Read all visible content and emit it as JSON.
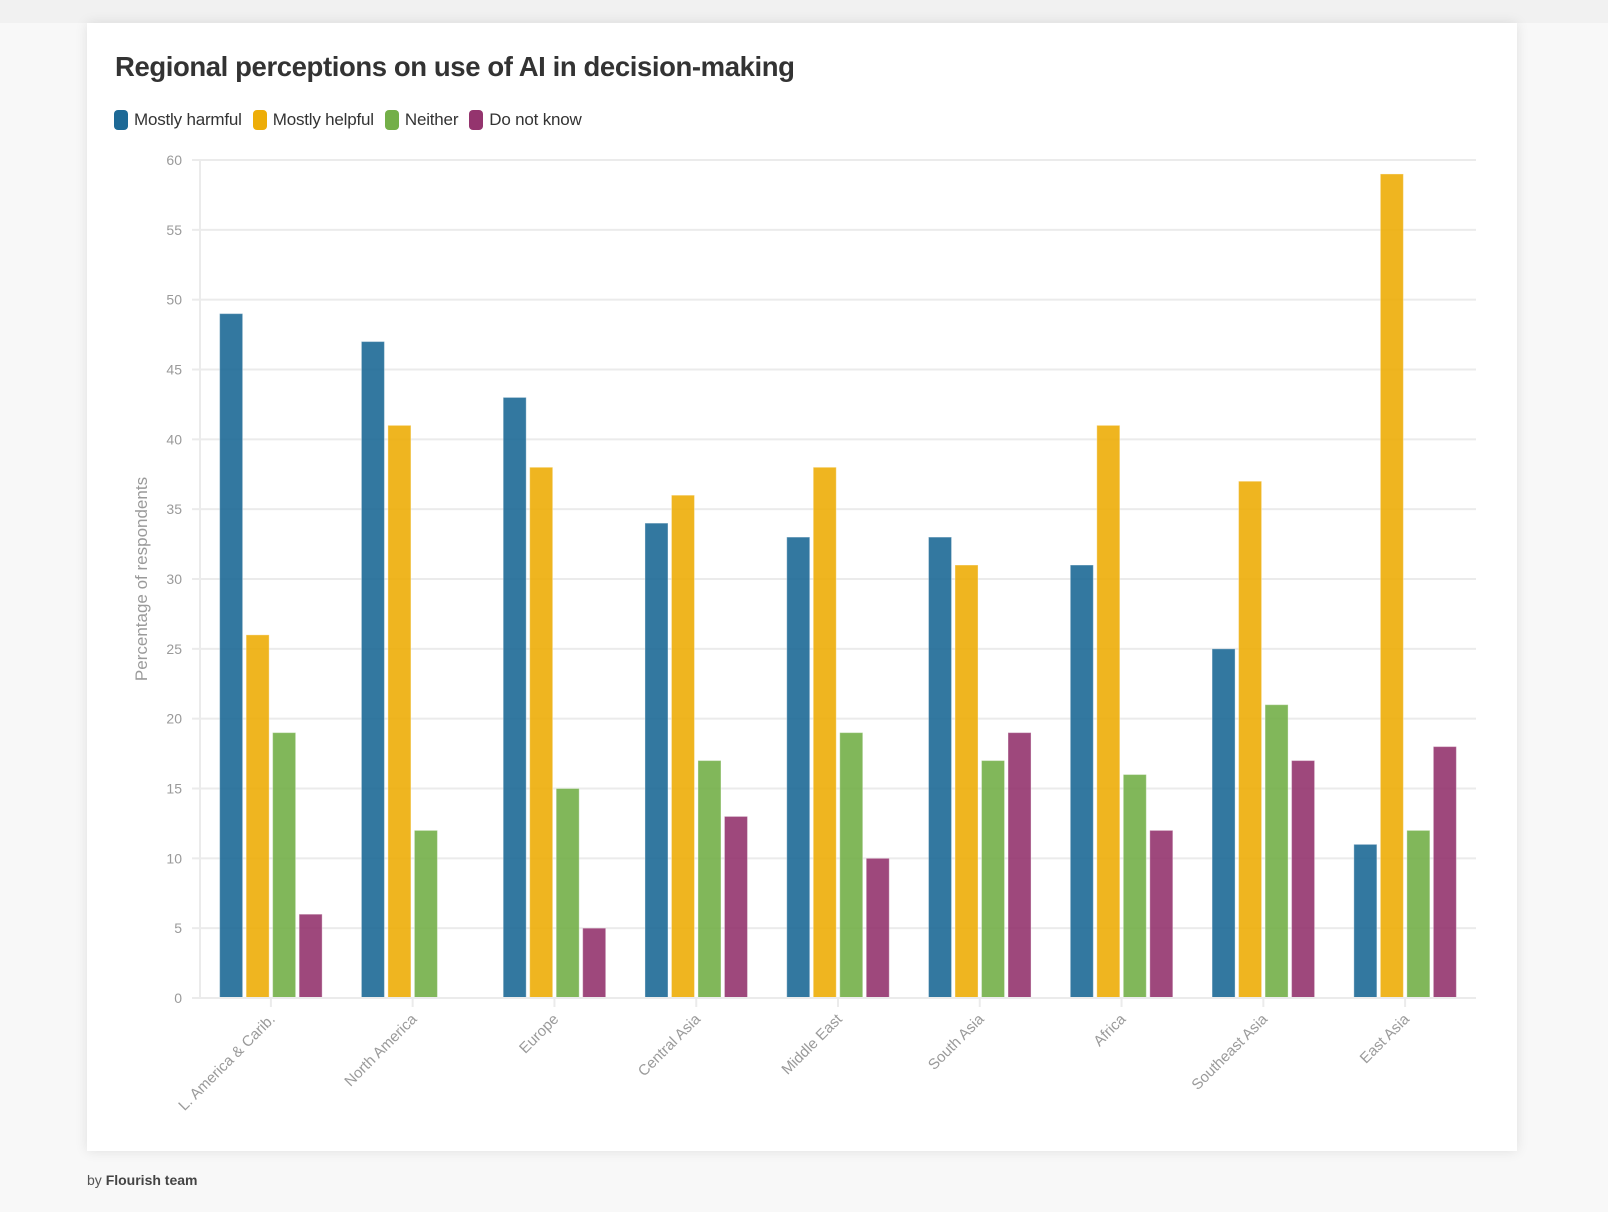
{
  "title": "Regional perceptions on use of AI in decision-making",
  "footer": {
    "prefix": "by",
    "author": "Flourish team"
  },
  "colors": {
    "Mostly harmful": "#1d6996",
    "Mostly helpful": "#edad08",
    "Neither": "#73af48",
    "Do not know": "#94346e"
  },
  "legend": [
    {
      "label": "Mostly harmful",
      "color": "#1d6996"
    },
    {
      "label": "Mostly helpful",
      "color": "#edad08"
    },
    {
      "label": "Neither",
      "color": "#73af48"
    },
    {
      "label": "Do not know",
      "color": "#94346e"
    }
  ],
  "chart_data": {
    "type": "bar",
    "title": "Regional perceptions on use of AI in decision-making",
    "xlabel": "",
    "ylabel": "Percentage of respondents",
    "ylim": [
      0,
      60
    ],
    "yticks": [
      0,
      5,
      10,
      15,
      20,
      25,
      30,
      35,
      40,
      45,
      50,
      55,
      60
    ],
    "grid": true,
    "legend_position": "top-left",
    "categories": [
      "L. America & Carib.",
      "North America",
      "Europe",
      "Central Asia",
      "Middle East",
      "South Asia",
      "Africa",
      "Southeast Asia",
      "East Asia"
    ],
    "series": [
      {
        "name": "Mostly harmful",
        "color": "#1d6996",
        "values": [
          49,
          47,
          43,
          34,
          33,
          33,
          31,
          25,
          11
        ]
      },
      {
        "name": "Mostly helpful",
        "color": "#edad08",
        "values": [
          26,
          41,
          38,
          36,
          38,
          31,
          41,
          37,
          59
        ]
      },
      {
        "name": "Neither",
        "color": "#73af48",
        "values": [
          19,
          12,
          15,
          17,
          19,
          17,
          16,
          21,
          12
        ]
      },
      {
        "name": "Do not know",
        "color": "#94346e",
        "values": [
          6,
          null,
          5,
          13,
          10,
          19,
          12,
          17,
          18
        ]
      }
    ]
  }
}
